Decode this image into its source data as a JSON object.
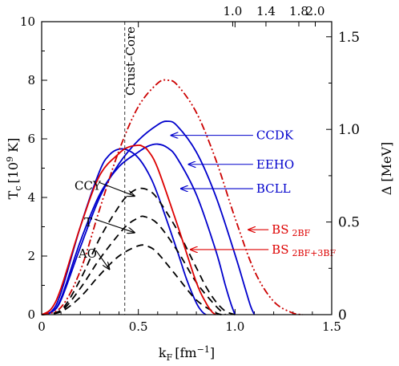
{
  "chart_data": {
    "type": "line",
    "xlabel": "k",
    "xlabel_sub": "F",
    "xlabel_unit": "[fm",
    "xlabel_unit_sup": "−1",
    "xlabel_unit_end": "]",
    "ylabel": "T",
    "ylabel_sub": "c",
    "ylabel_unit": "[10",
    "ylabel_unit_sup": "9",
    "ylabel_unit_end": " K]",
    "y2label": "Δ [MeV]",
    "xlim": [
      0,
      1.5
    ],
    "ylim": [
      0,
      10
    ],
    "y2lim": [
      0,
      1.5815
    ],
    "x_ticks": [
      "0",
      "0.5",
      "1.0",
      "1.5"
    ],
    "x_tick_values": [
      0,
      0.5,
      1.0,
      1.5
    ],
    "y_ticks": [
      "0",
      "2",
      "4",
      "6",
      "8",
      "10"
    ],
    "y_tick_values": [
      0,
      2,
      4,
      6,
      8,
      10
    ],
    "y2_ticks": [
      "0",
      "0.5",
      "1.0",
      "1.5"
    ],
    "y2_tick_values": [
      0,
      0.5,
      1.0,
      1.5
    ],
    "top_ticks": [
      "1.0",
      "1.4",
      "1.8",
      "2.0"
    ],
    "top_tick_values": [
      0.988,
      1.16,
      1.33,
      1.415
    ],
    "crust_core": {
      "x": 0.43,
      "label": "Crust–Core"
    },
    "series": [
      {
        "name": "CCDK",
        "color": "#0000cc",
        "dash": "solid",
        "x": [
          0,
          0.05,
          0.1,
          0.2,
          0.3,
          0.4,
          0.5,
          0.6,
          0.65,
          0.7,
          0.8,
          0.9,
          1.0,
          1.05,
          1.08,
          1.1
        ],
        "y": [
          0,
          0.08,
          0.5,
          2.3,
          4.0,
          5.15,
          5.95,
          6.48,
          6.6,
          6.45,
          5.55,
          4.05,
          2.05,
          0.95,
          0.3,
          0
        ]
      },
      {
        "name": "EEHO",
        "color": "#0000cc",
        "dash": "solid",
        "x": [
          0,
          0.05,
          0.1,
          0.2,
          0.3,
          0.4,
          0.5,
          0.55,
          0.6,
          0.65,
          0.7,
          0.8,
          0.9,
          0.95,
          0.98,
          1.0
        ],
        "y": [
          0,
          0.08,
          0.55,
          2.5,
          4.1,
          5.05,
          5.55,
          5.75,
          5.82,
          5.7,
          5.35,
          4.1,
          2.2,
          1.0,
          0.35,
          0
        ]
      },
      {
        "name": "BCLL",
        "color": "#0000cc",
        "dash": "solid",
        "x": [
          0,
          0.05,
          0.1,
          0.2,
          0.3,
          0.35,
          0.4,
          0.45,
          0.5,
          0.55,
          0.6,
          0.7,
          0.75,
          0.8,
          0.83,
          0.85
        ],
        "y": [
          0,
          0.1,
          0.75,
          3.0,
          4.9,
          5.45,
          5.65,
          5.6,
          5.35,
          4.85,
          4.1,
          2.2,
          1.2,
          0.4,
          0.1,
          0
        ]
      },
      {
        "name": "CCY",
        "color": "#000000",
        "dash": "dashed",
        "x": [
          0,
          0.1,
          0.2,
          0.3,
          0.4,
          0.45,
          0.5,
          0.55,
          0.6,
          0.7,
          0.8,
          0.85,
          0.9,
          0.95,
          1.0
        ],
        "y": [
          0,
          0.15,
          1.2,
          2.6,
          3.7,
          4.1,
          4.3,
          4.25,
          3.95,
          2.9,
          1.6,
          0.95,
          0.45,
          0.12,
          0
        ]
      },
      {
        "name": "T",
        "color": "#000000",
        "dash": "dashed",
        "x": [
          0,
          0.1,
          0.2,
          0.3,
          0.4,
          0.45,
          0.5,
          0.53,
          0.6,
          0.7,
          0.8,
          0.9,
          0.95
        ],
        "y": [
          0,
          0.12,
          0.9,
          1.9,
          2.75,
          3.1,
          3.3,
          3.35,
          3.1,
          2.2,
          1.1,
          0.3,
          0
        ]
      },
      {
        "name": "AO",
        "color": "#000000",
        "dash": "dashed",
        "x": [
          0,
          0.1,
          0.2,
          0.3,
          0.4,
          0.5,
          0.55,
          0.6,
          0.7,
          0.8,
          0.9,
          0.93
        ],
        "y": [
          0,
          0.1,
          0.6,
          1.35,
          2.0,
          2.35,
          2.33,
          2.1,
          1.3,
          0.5,
          0.06,
          0
        ]
      },
      {
        "name": "BS 2BF",
        "color": "#cc0000",
        "dash": "dashdotdot",
        "x": [
          0,
          0.1,
          0.2,
          0.3,
          0.4,
          0.5,
          0.6,
          0.65,
          0.7,
          0.8,
          0.9,
          1.0,
          1.1,
          1.2,
          1.3,
          1.35
        ],
        "y": [
          0,
          0.25,
          1.5,
          3.6,
          5.6,
          7.1,
          7.9,
          8.0,
          7.85,
          6.9,
          5.3,
          3.3,
          1.5,
          0.45,
          0.05,
          0
        ]
      },
      {
        "name": "BS 2BF+3BF",
        "color": "#dd0000",
        "dash": "solid",
        "x": [
          0,
          0.05,
          0.1,
          0.2,
          0.3,
          0.4,
          0.45,
          0.5,
          0.52,
          0.55,
          0.6,
          0.7,
          0.8,
          0.85,
          0.88,
          0.9
        ],
        "y": [
          0,
          0.2,
          0.9,
          3.0,
          4.75,
          5.5,
          5.72,
          5.78,
          5.75,
          5.6,
          5.0,
          3.1,
          1.1,
          0.4,
          0.1,
          0
        ]
      }
    ],
    "annotations": [
      {
        "name": "CCDK",
        "text": "CCDK",
        "sub": "",
        "color": "#0000cc",
        "text_x": 1.11,
        "text_y": 6.12,
        "to_x": 0.67,
        "to_y": 6.12
      },
      {
        "name": "EEHO",
        "text": "EEHO",
        "sub": "",
        "color": "#0000cc",
        "text_x": 1.11,
        "text_y": 5.13,
        "to_x": 0.76,
        "to_y": 5.13
      },
      {
        "name": "BCLL",
        "text": "BCLL",
        "sub": "",
        "color": "#0000cc",
        "text_x": 1.11,
        "text_y": 4.3,
        "to_x": 0.72,
        "to_y": 4.3
      },
      {
        "name": "CCY",
        "text": "CCY",
        "sub": "",
        "color": "#000000",
        "text_x": 0.17,
        "text_y": 4.4,
        "to_x": 0.48,
        "to_y": 4.05
      },
      {
        "name": "T",
        "text": "T",
        "sub": "",
        "color": "#000000",
        "text_x": 0.22,
        "text_y": 3.15,
        "to_x": 0.48,
        "to_y": 2.8
      },
      {
        "name": "AO",
        "text": "AO",
        "sub": "",
        "color": "#000000",
        "text_x": 0.19,
        "text_y": 2.08,
        "to_x": 0.35,
        "to_y": 1.55
      },
      {
        "name": "BS 2BF",
        "text": "BS",
        "sub": "2BF",
        "color": "#dd0000",
        "text_x": 1.19,
        "text_y": 2.9,
        "to_x": 1.07,
        "to_y": 2.9
      },
      {
        "name": "BS 2BF+3BF",
        "text": "BS",
        "sub": "2BF+3BF",
        "color": "#dd0000",
        "text_x": 1.19,
        "text_y": 2.22,
        "to_x": 0.77,
        "to_y": 2.22
      }
    ]
  }
}
